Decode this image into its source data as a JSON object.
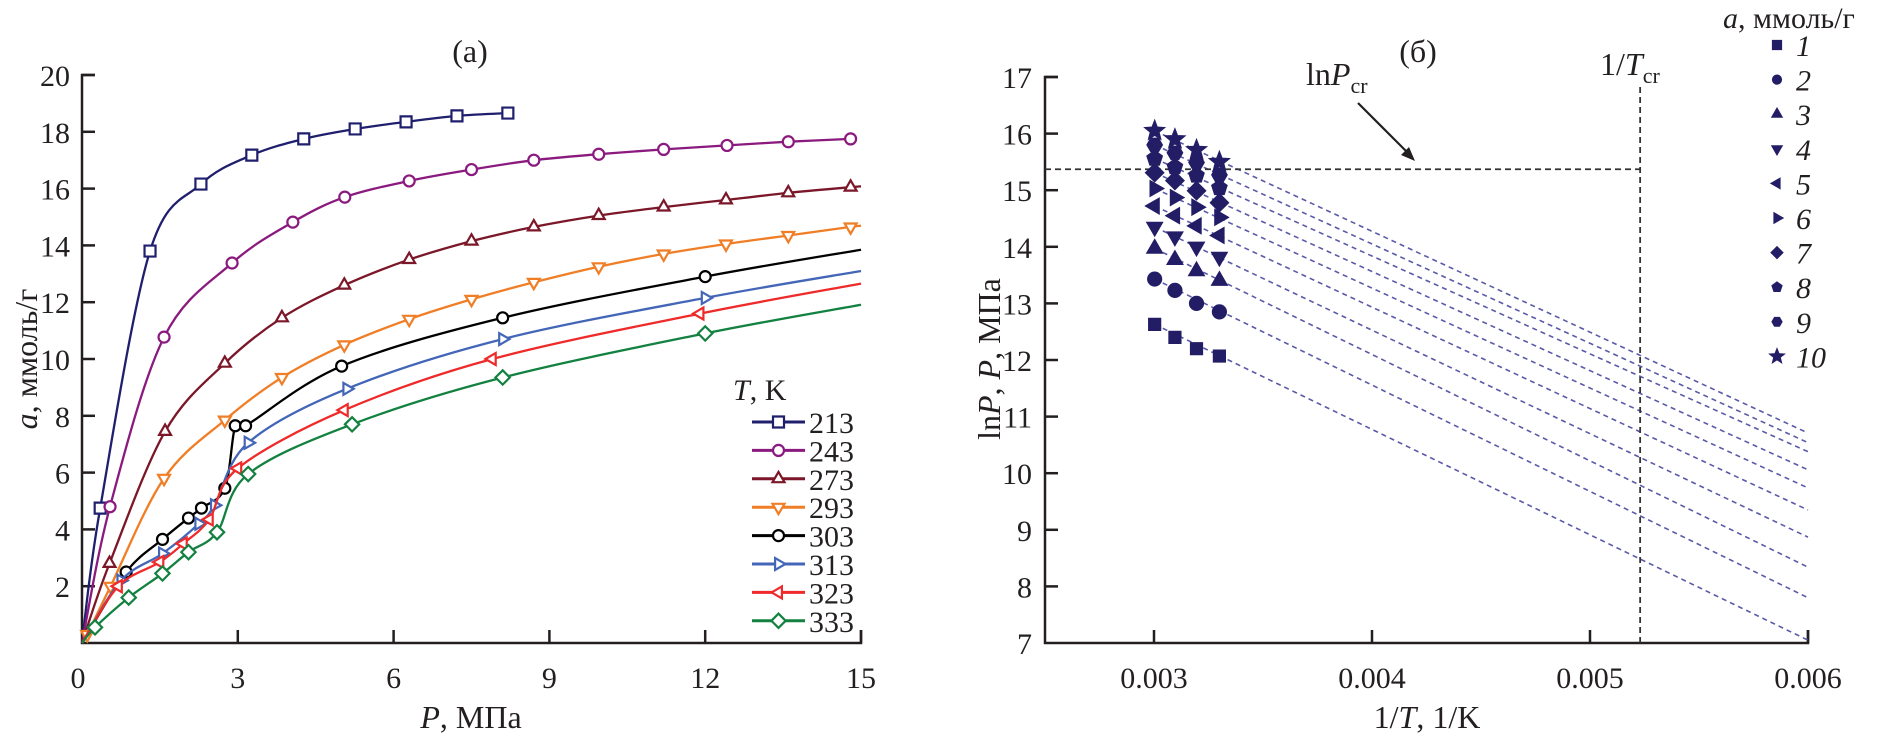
{
  "chart_data": [
    {
      "type": "line",
      "panel_label": "(а)",
      "xlabel": "P, МПа",
      "xlabel_var": "P",
      "xlabel_unit": ", МПа",
      "ylabel": "a, ммоль/г",
      "ylabel_var": "a",
      "ylabel_unit": ", ммоль/г",
      "xlim": [
        0,
        15
      ],
      "ylim": [
        0,
        20
      ],
      "xticks": [
        0,
        3,
        6,
        9,
        12,
        15
      ],
      "yticks": [
        2,
        4,
        6,
        8,
        10,
        12,
        14,
        16,
        18,
        20
      ],
      "ytick_zero_label": "0",
      "grid": false,
      "legend": {
        "title_var": "T",
        "title_unit": ", K",
        "placement": "bottom-right"
      },
      "series": [
        {
          "name": "213",
          "color": "#1f1f6e",
          "marker": "square",
          "points": [
            [
              0.35,
              4.75
            ],
            [
              1.31,
              13.8
            ],
            [
              2.29,
              16.16
            ],
            [
              3.27,
              17.18
            ],
            [
              4.27,
              17.75
            ],
            [
              5.26,
              18.1
            ],
            [
              6.24,
              18.35
            ],
            [
              7.22,
              18.56
            ],
            [
              8.2,
              18.66
            ]
          ],
          "curve_end": 8.2
        },
        {
          "name": "243",
          "color": "#8b1a7e",
          "marker": "circle",
          "points": [
            [
              0.54,
              4.8
            ],
            [
              1.58,
              10.77
            ],
            [
              2.89,
              13.38
            ],
            [
              4.06,
              14.82
            ],
            [
              5.06,
              15.7
            ],
            [
              6.3,
              16.27
            ],
            [
              7.5,
              16.67
            ],
            [
              8.7,
              17.0
            ],
            [
              9.95,
              17.21
            ],
            [
              11.2,
              17.38
            ],
            [
              12.42,
              17.52
            ],
            [
              13.6,
              17.65
            ],
            [
              14.8,
              17.75
            ]
          ],
          "curve_end": 14.8
        },
        {
          "name": "273",
          "color": "#7b1728",
          "marker": "triangle-up",
          "points": [
            [
              0.53,
              2.8
            ],
            [
              1.6,
              7.45
            ],
            [
              2.75,
              9.85
            ],
            [
              3.85,
              11.45
            ],
            [
              5.05,
              12.6
            ],
            [
              6.3,
              13.5
            ],
            [
              7.5,
              14.15
            ],
            [
              8.7,
              14.65
            ],
            [
              9.95,
              15.05
            ],
            [
              11.2,
              15.35
            ],
            [
              12.4,
              15.6
            ],
            [
              13.6,
              15.85
            ],
            [
              14.8,
              16.05
            ]
          ],
          "curve_end": 15
        },
        {
          "name": "293",
          "color": "#f07e26",
          "marker": "triangle-down",
          "points": [
            [
              0.1,
              0.3
            ],
            [
              0.55,
              2.0
            ],
            [
              1.58,
              5.8
            ],
            [
              2.75,
              7.85
            ],
            [
              3.85,
              9.35
            ],
            [
              5.05,
              10.5
            ],
            [
              6.3,
              11.4
            ],
            [
              7.5,
              12.1
            ],
            [
              8.7,
              12.7
            ],
            [
              9.95,
              13.25
            ],
            [
              11.2,
              13.7
            ],
            [
              12.4,
              14.05
            ],
            [
              13.6,
              14.35
            ],
            [
              14.8,
              14.65
            ]
          ],
          "curve_end": 15
        },
        {
          "name": "303",
          "color": "#000000",
          "marker": "circle",
          "points": [
            [
              0.85,
              2.5
            ],
            [
              1.55,
              3.65
            ],
            [
              2.05,
              4.4
            ],
            [
              2.3,
              4.75
            ],
            [
              2.75,
              5.45
            ],
            [
              2.95,
              7.65
            ],
            [
              3.15,
              7.65
            ],
            [
              5.0,
              9.75
            ],
            [
              8.1,
              11.45
            ],
            [
              12.0,
              12.9
            ]
          ],
          "curve_end": 15
        },
        {
          "name": "313",
          "color": "#4466b8",
          "marker": "triangle-right",
          "points": [
            [
              0.75,
              2.2
            ],
            [
              1.55,
              3.15
            ],
            [
              2.25,
              4.2
            ],
            [
              2.55,
              4.85
            ],
            [
              3.2,
              7.05
            ],
            [
              5.1,
              8.95
            ],
            [
              8.1,
              10.7
            ],
            [
              12.0,
              12.15
            ]
          ],
          "curve_end": 15
        },
        {
          "name": "323",
          "color": "#ee2a2a",
          "marker": "triangle-left",
          "points": [
            [
              0.7,
              2.0
            ],
            [
              1.5,
              2.85
            ],
            [
              1.95,
              3.5
            ],
            [
              2.45,
              4.35
            ],
            [
              3.0,
              6.15
            ],
            [
              5.05,
              8.2
            ],
            [
              7.9,
              10.0
            ],
            [
              11.9,
              11.6
            ]
          ],
          "curve_end": 15
        },
        {
          "name": "333",
          "color": "#138140",
          "marker": "diamond",
          "points": [
            [
              0.25,
              0.55
            ],
            [
              0.9,
              1.6
            ],
            [
              1.55,
              2.45
            ],
            [
              2.05,
              3.2
            ],
            [
              2.6,
              3.9
            ],
            [
              3.2,
              5.95
            ],
            [
              5.2,
              7.7
            ],
            [
              8.1,
              9.35
            ],
            [
              12.0,
              10.9
            ]
          ],
          "curve_end": 15
        }
      ]
    },
    {
      "type": "scatter",
      "panel_label": "(б)",
      "xlabel": "1/T, 1/K",
      "xlabel_pre": "1/",
      "xlabel_var": "T",
      "xlabel_unit": ", 1/K",
      "ylabel": "lnP, P, МПа",
      "ylabel_pre": "ln",
      "ylabel_var": "P",
      "ylabel_sep": ", ",
      "ylabel_var2": "P",
      "ylabel_unit": ", МПа",
      "xlim": [
        0.0025,
        0.006
      ],
      "ylim": [
        7,
        17
      ],
      "xticks": [
        "0.003",
        "0.004",
        "0.005",
        "0.006"
      ],
      "yticks": [
        7,
        8,
        9,
        10,
        11,
        12,
        13,
        14,
        15,
        16,
        17
      ],
      "grid": false,
      "marker_color": "#231d66",
      "fit_line_color": "#5a5aa8",
      "reference_lines": {
        "lnPcr": {
          "value": 15.37,
          "label_pre": "ln",
          "label_var": "P",
          "label_sub": "cr"
        },
        "inv_Tcr": {
          "value": 0.00523,
          "label_pre": "1/",
          "label_var": "T",
          "label_sub": "cr"
        }
      },
      "legend": {
        "title_var": "a",
        "title_unit": ", ммоль/г",
        "placement": "right"
      },
      "x": [
        0.003003,
        0.003096,
        0.003195,
        0.0033
      ],
      "series": [
        {
          "name": "1",
          "marker": "square",
          "values": [
            12.63,
            12.4,
            12.2,
            12.07
          ],
          "fit_end": 7.05
        },
        {
          "name": "2",
          "marker": "circle",
          "values": [
            13.43,
            13.23,
            13.0,
            12.85
          ],
          "fit_end": 7.8
        },
        {
          "name": "3",
          "marker": "triangle-up",
          "values": [
            13.97,
            13.77,
            13.57,
            13.4
          ],
          "fit_end": 8.34
        },
        {
          "name": "4",
          "marker": "triangle-down",
          "values": [
            14.35,
            14.18,
            14.0,
            13.82
          ],
          "fit_end": 8.87
        },
        {
          "name": "5",
          "marker": "triangle-left",
          "values": [
            14.72,
            14.55,
            14.37,
            14.2
          ],
          "fit_end": 9.35
        },
        {
          "name": "6",
          "marker": "triangle-right",
          "values": [
            15.03,
            14.87,
            14.7,
            14.52
          ],
          "fit_end": 9.74
        },
        {
          "name": "7",
          "marker": "diamond",
          "values": [
            15.31,
            15.17,
            14.99,
            14.78
          ],
          "fit_end": 10.06
        },
        {
          "name": "8",
          "marker": "pentagon",
          "values": [
            15.56,
            15.41,
            15.26,
            15.04
          ],
          "fit_end": 10.38
        },
        {
          "name": "9",
          "marker": "hexagon",
          "values": [
            15.8,
            15.66,
            15.49,
            15.27
          ],
          "fit_end": 10.54
        },
        {
          "name": "10",
          "marker": "star",
          "values": [
            16.05,
            15.9,
            15.71,
            15.5
          ],
          "fit_end": 10.71
        }
      ]
    }
  ]
}
